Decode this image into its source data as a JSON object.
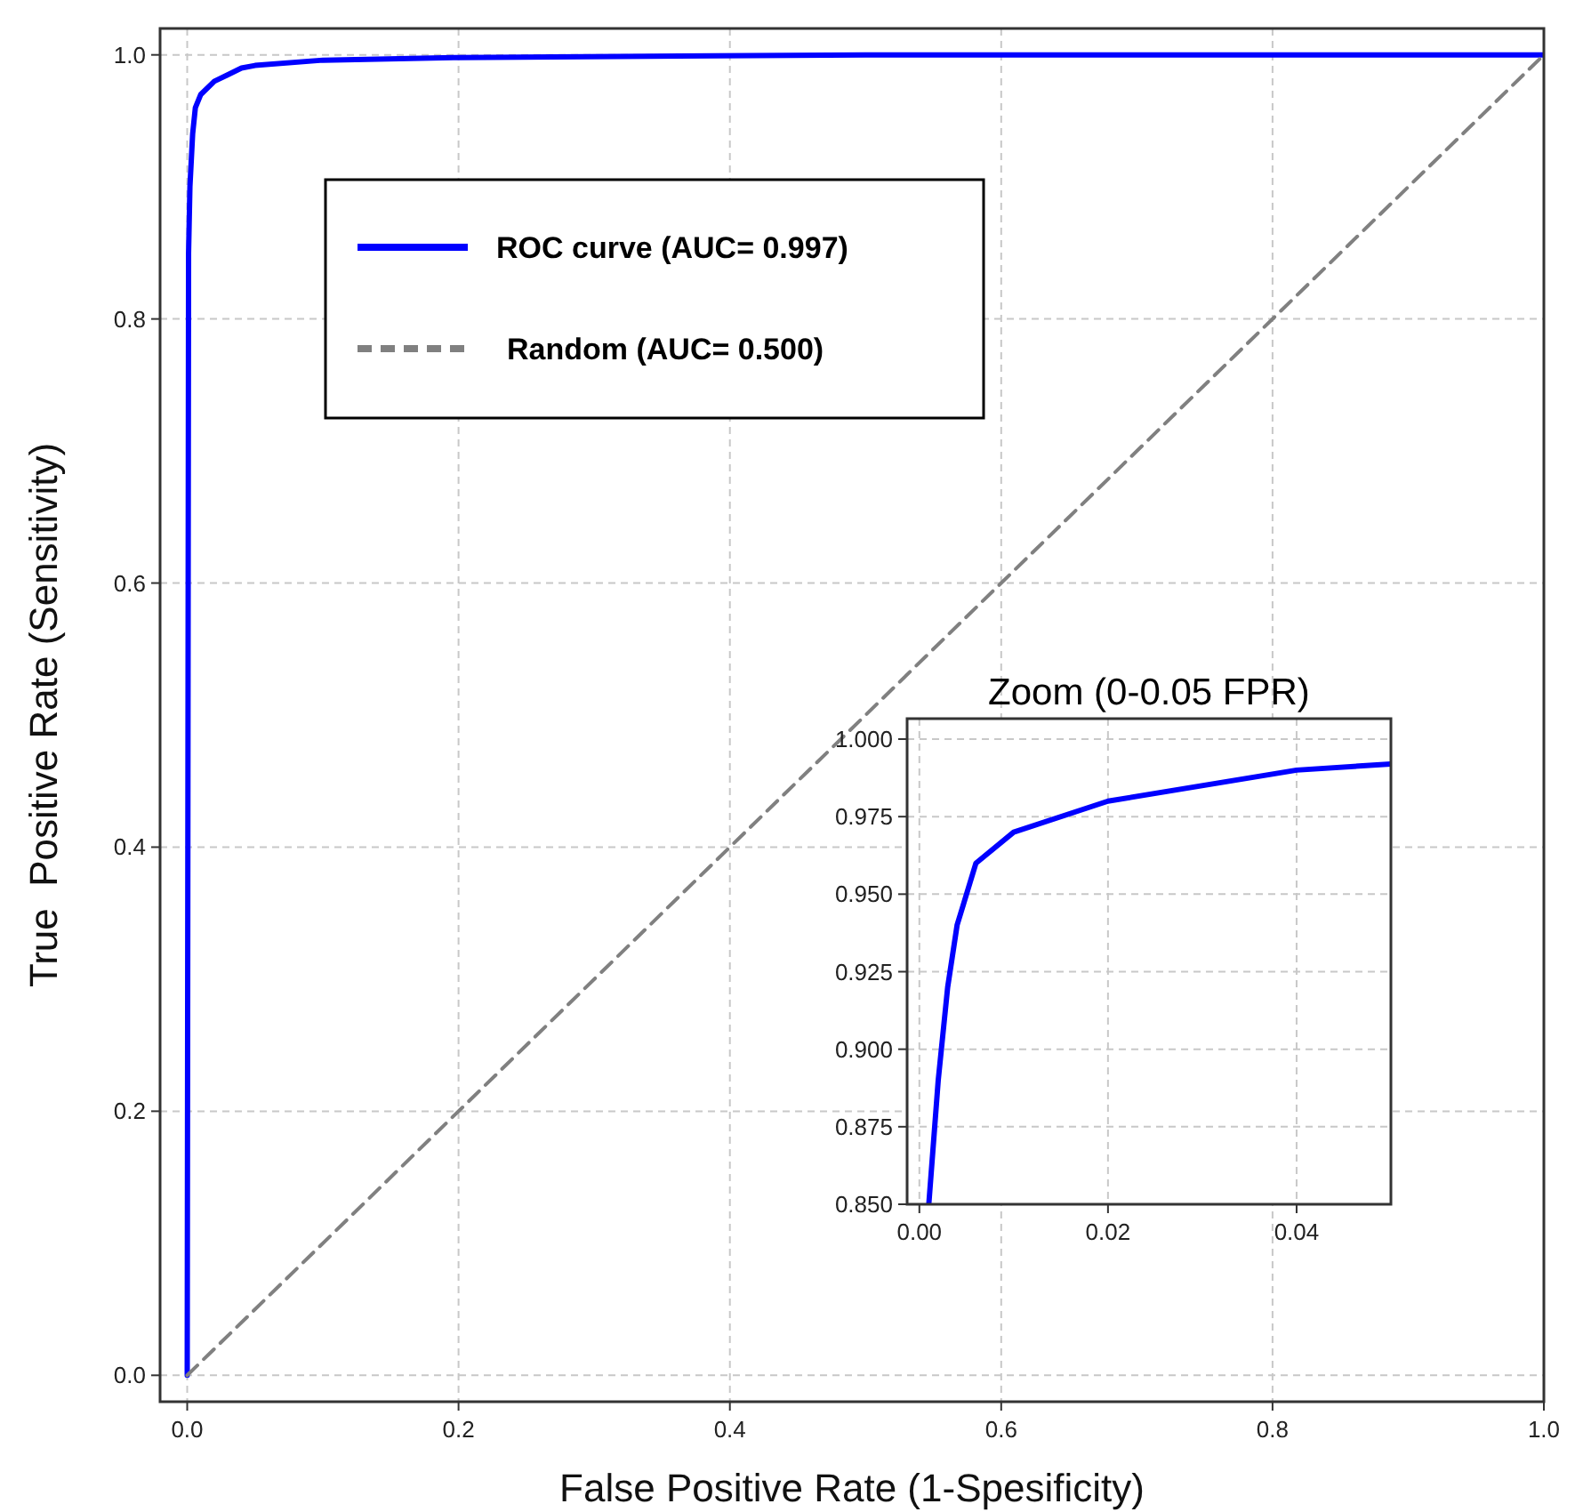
{
  "chart_data": [
    {
      "type": "line",
      "xlabel": "False Positive Rate (1-Spesificity)",
      "ylabel": "True  Positive Rate (Sensitivity)",
      "xlim": [
        -0.02,
        1.0
      ],
      "ylim": [
        -0.02,
        1.02
      ],
      "xticks": [
        {
          "value": 0,
          "label": "0.0"
        },
        {
          "value": 0.2,
          "label": "0.2"
        },
        {
          "value": 0.4,
          "label": "0.4"
        },
        {
          "value": 0.6,
          "label": "0.6"
        },
        {
          "value": 0.8,
          "label": "0.8"
        },
        {
          "value": 1,
          "label": "1.0"
        }
      ],
      "yticks": [
        {
          "value": 0,
          "label": "0.0"
        },
        {
          "value": 0.2,
          "label": "0.2"
        },
        {
          "value": 0.4,
          "label": "0.4"
        },
        {
          "value": 0.6,
          "label": "0.6"
        },
        {
          "value": 0.8,
          "label": "0.8"
        },
        {
          "value": 1,
          "label": "1.0"
        }
      ],
      "grid": true,
      "legend": "top left",
      "series": [
        {
          "name": "ROC curve (AUC= 0.997)",
          "color": "#0000ff",
          "line_style": "solid",
          "x": [
            0,
            0.001,
            0.002,
            0.004,
            0.006,
            0.01,
            0.02,
            0.04,
            0.05,
            0.1,
            0.2,
            0.5,
            1
          ],
          "values": [
            0,
            0.85,
            0.9,
            0.94,
            0.96,
            0.97,
            0.98,
            0.99,
            0.992,
            0.996,
            0.998,
            1,
            1
          ]
        },
        {
          "name": "Random (AUC= 0.500)",
          "color": "#808080",
          "line_style": "dashed",
          "x": [
            0,
            1
          ],
          "values": [
            0,
            1
          ]
        }
      ]
    },
    {
      "type": "line",
      "title": "Zoom (0-0.05 FPR)",
      "xlim": [
        -0.0013,
        0.05
      ],
      "ylim": [
        0.85,
        1.0066
      ],
      "xticks": [
        {
          "value": 0,
          "label": "0.00"
        },
        {
          "value": 0.02,
          "label": "0.02"
        },
        {
          "value": 0.04,
          "label": "0.04"
        }
      ],
      "yticks": [
        {
          "value": 0.85,
          "label": "0.850"
        },
        {
          "value": 0.875,
          "label": "0.875"
        },
        {
          "value": 0.9,
          "label": "0.900"
        },
        {
          "value": 0.925,
          "label": "0.925"
        },
        {
          "value": 0.95,
          "label": "0.950"
        },
        {
          "value": 0.975,
          "label": "0.975"
        },
        {
          "value": 1,
          "label": "1.000"
        }
      ],
      "grid": true,
      "series": [
        {
          "color": "#0000ff",
          "line_style": "solid",
          "x": [
            0.001,
            0.002,
            0.003,
            0.004,
            0.006,
            0.01,
            0.02,
            0.04,
            0.05
          ],
          "values": [
            0.85,
            0.89,
            0.92,
            0.94,
            0.96,
            0.97,
            0.98,
            0.99,
            0.992
          ]
        }
      ]
    }
  ]
}
